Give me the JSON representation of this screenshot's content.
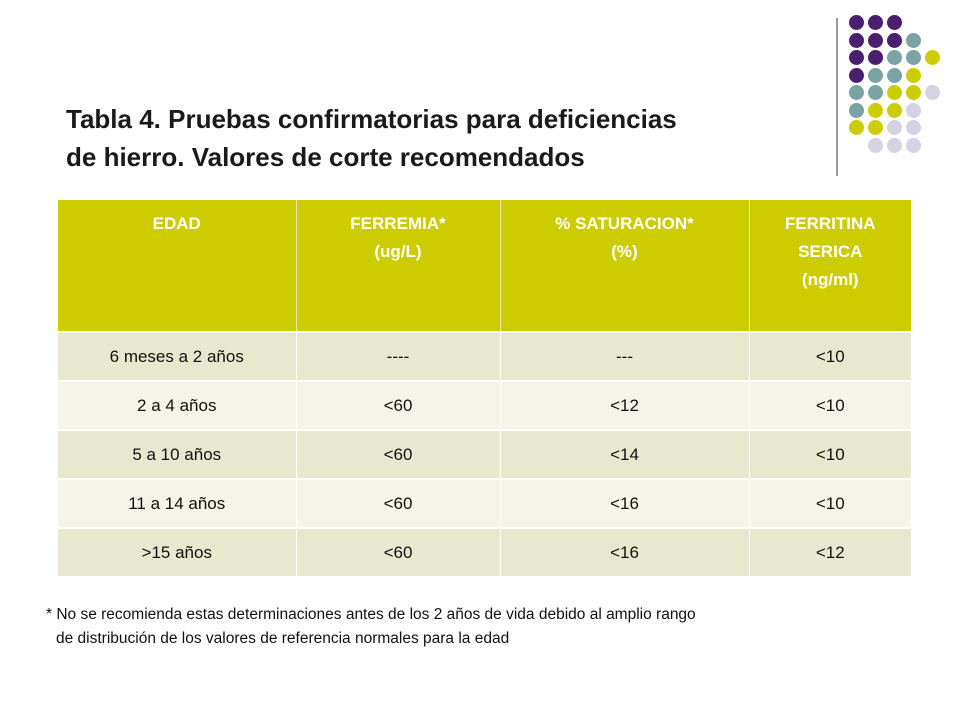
{
  "title": {
    "line1": "Tabla 4. Pruebas confirmatorias para deficiencias",
    "line2": "de hierro. Valores de corte recomendados"
  },
  "colors": {
    "header_bg": "#CCCC00",
    "row_odd": "#E8E8CF",
    "row_even": "#F4F4E9",
    "dot_purple": "#4B1F6F",
    "dot_teal": "#7BA3A3",
    "dot_lime": "#CCCC00",
    "dot_lavender": "#D5D2E3"
  },
  "table": {
    "headers": [
      [
        "EDAD"
      ],
      [
        "FERREMIA*",
        "(ug/L)"
      ],
      [
        "% SATURACION*",
        "(%)"
      ],
      [
        "FERRITINA",
        "SERICA",
        "(ng/ml)"
      ]
    ],
    "rows": [
      [
        "6 meses a 2 años",
        "----",
        "---",
        "<10"
      ],
      [
        "2 a 4 años",
        "<60",
        "<12",
        "<10"
      ],
      [
        "5 a 10 años",
        "<60",
        "<14",
        "<10"
      ],
      [
        "11 a 14 años",
        "<60",
        "<16",
        "<10"
      ],
      [
        ">15 años",
        "<60",
        "<16",
        "<12"
      ]
    ]
  },
  "footnote": {
    "line1": "* No se recomienda estas determinaciones antes de los 2 años de vida debido al amplio rango",
    "line2": "de distribución de los valores de referencia normales para la edad"
  }
}
